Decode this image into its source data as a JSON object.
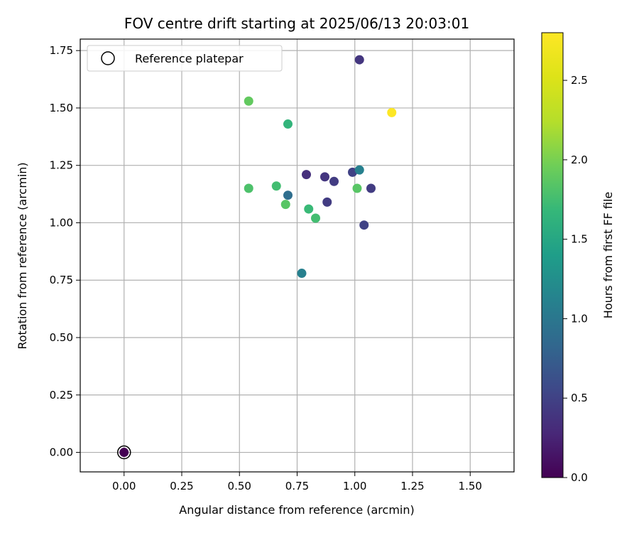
{
  "chart_data": {
    "type": "scatter",
    "title": "FOV centre drift starting at 2025/06/13 20:03:01",
    "xlabel": "Angular distance from reference (arcmin)",
    "ylabel": "Rotation from reference (arcmin)",
    "xlim": [
      -0.19,
      1.69
    ],
    "ylim": [
      -0.085,
      1.8
    ],
    "xticks": [
      "0.00",
      "0.25",
      "0.50",
      "0.75",
      "1.00",
      "1.25",
      "1.50"
    ],
    "xtick_values": [
      0,
      0.25,
      0.5,
      0.75,
      1.0,
      1.25,
      1.5
    ],
    "yticks": [
      "0.00",
      "0.25",
      "0.50",
      "0.75",
      "1.00",
      "1.25",
      "1.50",
      "1.75"
    ],
    "ytick_values": [
      0,
      0.25,
      0.5,
      0.75,
      1.0,
      1.25,
      1.5,
      1.75
    ],
    "grid": true,
    "legend": {
      "placement": "upper-left",
      "entries": [
        "Reference platepar"
      ]
    },
    "colorbar": {
      "label": "Hours from first FF file",
      "range": [
        0,
        2.8
      ],
      "ticks": [
        "0.0",
        "0.5",
        "1.0",
        "1.5",
        "2.0",
        "2.5"
      ],
      "tick_values": [
        0,
        0.5,
        1.0,
        1.5,
        2.0,
        2.5
      ],
      "colormap": "viridis"
    },
    "reference_point": {
      "x": 0,
      "y": 0,
      "hours": 0
    },
    "points": [
      {
        "x": 0.0,
        "y": 0.0,
        "hours": 0.0
      },
      {
        "x": 1.02,
        "y": 1.71,
        "hours": 0.4
      },
      {
        "x": 0.54,
        "y": 1.53,
        "hours": 1.9
      },
      {
        "x": 1.16,
        "y": 1.48,
        "hours": 2.8
      },
      {
        "x": 0.71,
        "y": 1.43,
        "hours": 1.65
      },
      {
        "x": 0.79,
        "y": 1.21,
        "hours": 0.35
      },
      {
        "x": 0.87,
        "y": 1.2,
        "hours": 0.4
      },
      {
        "x": 0.91,
        "y": 1.18,
        "hours": 0.45
      },
      {
        "x": 0.99,
        "y": 1.22,
        "hours": 0.5
      },
      {
        "x": 1.02,
        "y": 1.23,
        "hours": 1.1
      },
      {
        "x": 1.07,
        "y": 1.15,
        "hours": 0.45
      },
      {
        "x": 1.01,
        "y": 1.15,
        "hours": 1.85
      },
      {
        "x": 0.54,
        "y": 1.15,
        "hours": 1.8
      },
      {
        "x": 0.66,
        "y": 1.16,
        "hours": 1.75
      },
      {
        "x": 0.71,
        "y": 1.12,
        "hours": 0.9
      },
      {
        "x": 0.7,
        "y": 1.08,
        "hours": 1.85
      },
      {
        "x": 0.8,
        "y": 1.06,
        "hours": 1.7
      },
      {
        "x": 0.88,
        "y": 1.09,
        "hours": 0.45
      },
      {
        "x": 0.83,
        "y": 1.02,
        "hours": 1.75
      },
      {
        "x": 1.04,
        "y": 0.99,
        "hours": 0.5
      },
      {
        "x": 0.77,
        "y": 0.78,
        "hours": 1.1
      }
    ]
  }
}
